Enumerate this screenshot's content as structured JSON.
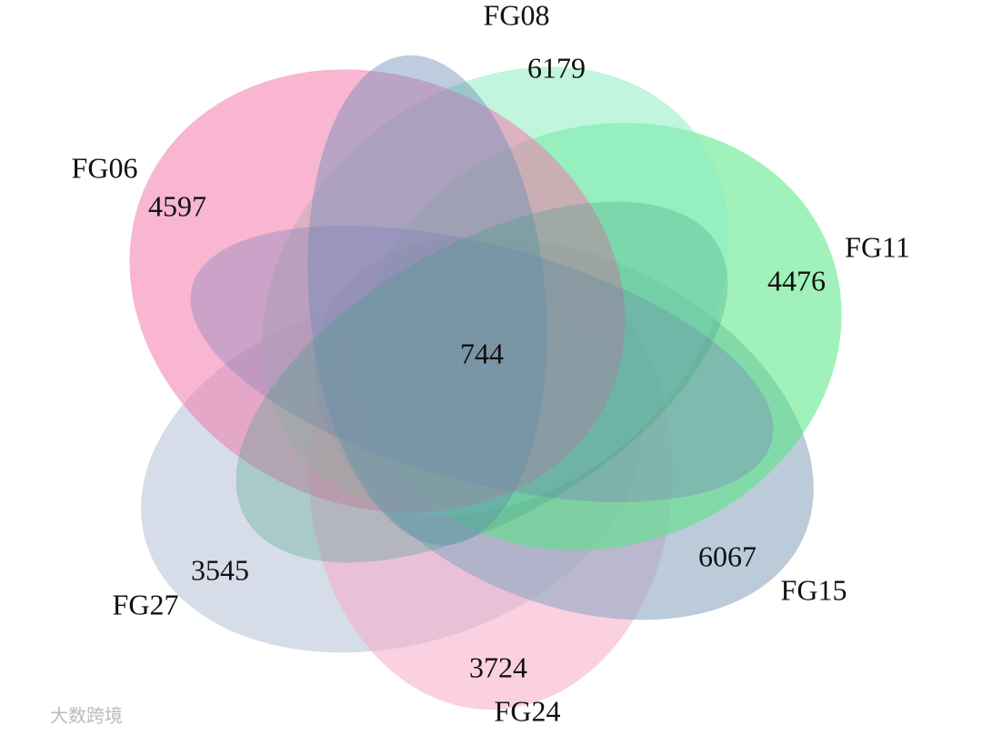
{
  "sets": [
    {
      "label": "FG06",
      "count": "4597"
    },
    {
      "label": "FG08",
      "count": "6179"
    },
    {
      "label": "FG11",
      "count": "4476"
    },
    {
      "label": "FG15",
      "count": "6067"
    },
    {
      "label": "FG24",
      "count": "3724"
    },
    {
      "label": "FG27",
      "count": "3545"
    }
  ],
  "core": "744",
  "watermark": "大数跨境"
}
